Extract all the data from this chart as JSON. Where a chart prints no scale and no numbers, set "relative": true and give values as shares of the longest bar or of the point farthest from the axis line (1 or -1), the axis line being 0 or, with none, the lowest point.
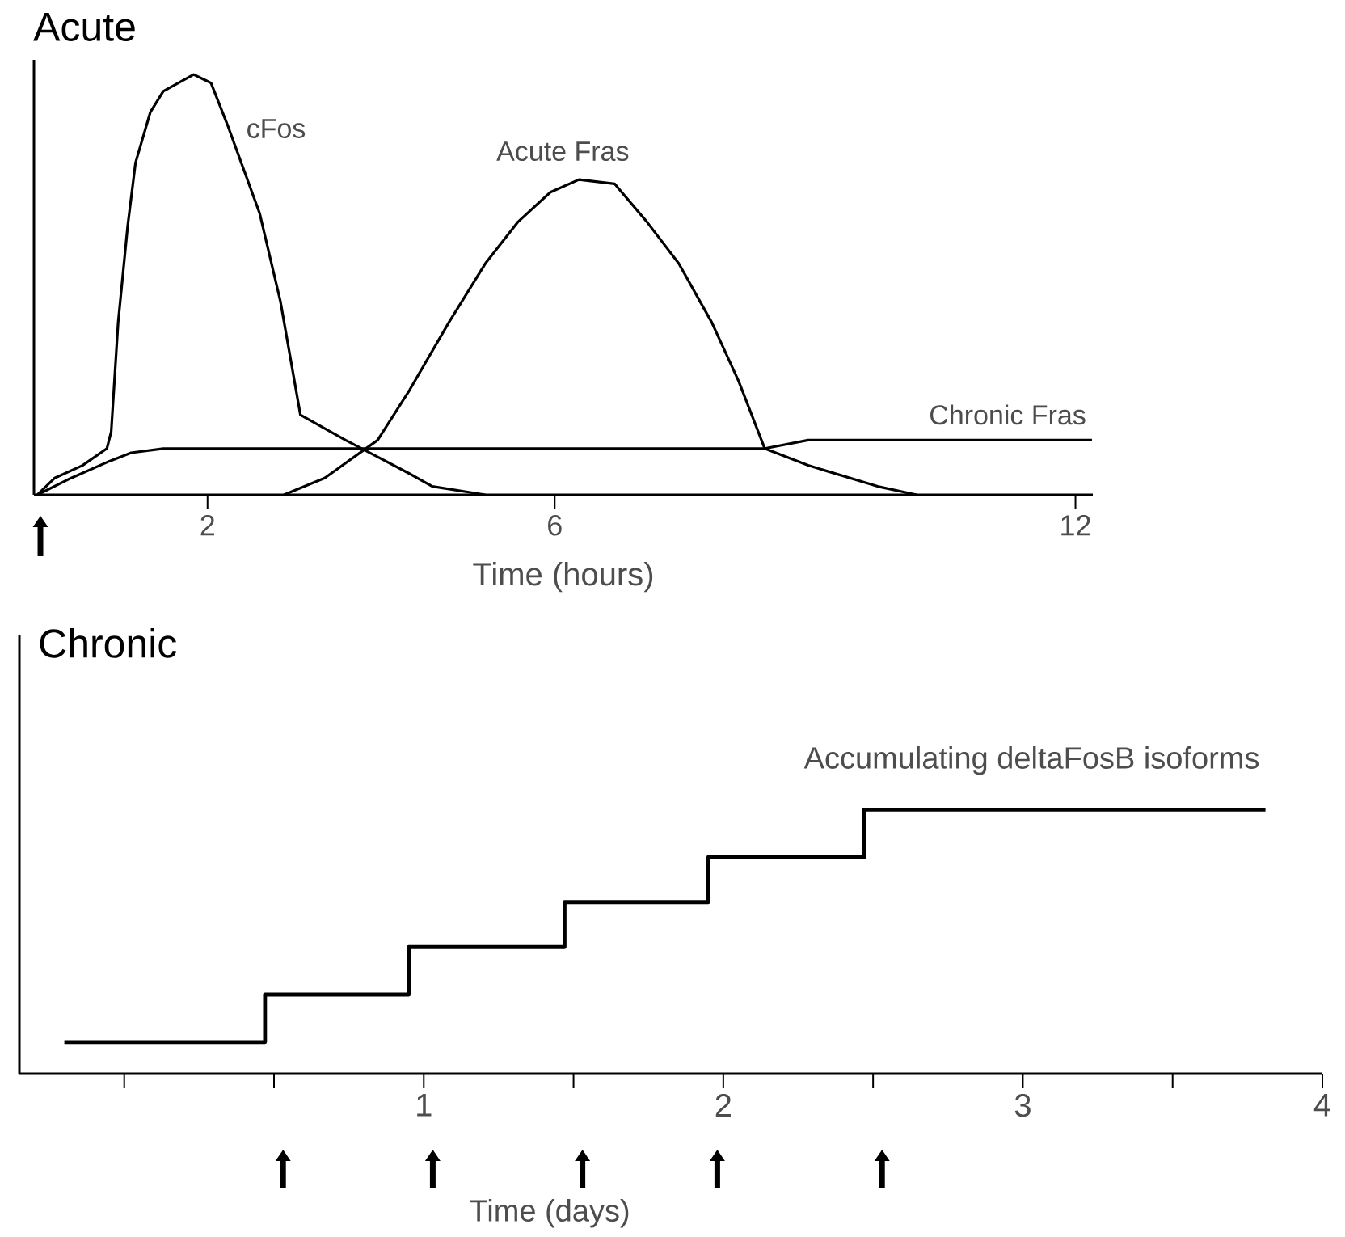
{
  "chart_data": [
    {
      "type": "line",
      "title": "Acute",
      "xlabel": "Time (hours)",
      "relative": true,
      "xlim": [
        0,
        12.2
      ],
      "xticks": [
        2,
        6,
        12
      ],
      "series": [
        {
          "name": "cFos",
          "color": "#000000",
          "x": [
            0.04,
            0.24,
            0.56,
            0.84,
            0.89,
            0.97,
            1.08,
            1.17,
            1.34,
            1.49,
            1.84,
            2.04,
            2.23,
            2.6,
            2.84,
            3.07,
            3.59,
            3.96,
            4.33,
            4.59,
            5.2
          ],
          "values": [
            0,
            0.04,
            0.07,
            0.11,
            0.15,
            0.41,
            0.64,
            0.79,
            0.91,
            0.96,
            1,
            0.98,
            0.88,
            0.67,
            0.46,
            0.19,
            0.13,
            0.09,
            0.05,
            0.02,
            0
          ]
        },
        {
          "name": "Acute Fras",
          "color": "#000000",
          "x": [
            2.88,
            3.35,
            3.96,
            4.33,
            4.78,
            5.2,
            5.58,
            5.95,
            6.28,
            6.69,
            7.06,
            7.43,
            7.81,
            8.12,
            8.42,
            8.92,
            9.24,
            9.72,
            10.17
          ],
          "values": [
            0,
            0.04,
            0.13,
            0.25,
            0.41,
            0.55,
            0.65,
            0.72,
            0.75,
            0.74,
            0.65,
            0.55,
            0.41,
            0.27,
            0.11,
            0.07,
            0.05,
            0.02,
            0
          ]
        },
        {
          "name": "Chronic Fras",
          "color": "#000000",
          "x": [
            0.04,
            0.43,
            0.87,
            1.12,
            1.49,
            7.43,
            8.42,
            8.92,
            9.85,
            12.19
          ],
          "values": [
            0,
            0.04,
            0.08,
            0.1,
            0.11,
            0.11,
            0.11,
            0.13,
            0.13,
            0.13
          ]
        }
      ]
    },
    {
      "type": "step",
      "title": "Chronic",
      "xlabel": "Time (days)",
      "relative": true,
      "xlim": [
        -0.35,
        4
      ],
      "xticks": [
        {
          "value": 0,
          "label": null
        },
        {
          "value": 0.5,
          "label": null
        },
        1,
        {
          "value": 1.5,
          "label": null
        },
        2,
        {
          "value": 2.5,
          "label": null
        },
        3,
        {
          "value": 3.5,
          "label": null
        },
        4
      ],
      "series": [
        {
          "name": "Accumulating deltaFosB isoforms",
          "color": "#000000",
          "x": [
            -0.2,
            0.47,
            0.95,
            1.47,
            1.95,
            2.47,
            3.81
          ],
          "values": [
            0.12,
            0.3,
            0.48,
            0.65,
            0.82,
            1,
            1
          ]
        }
      ]
    }
  ]
}
